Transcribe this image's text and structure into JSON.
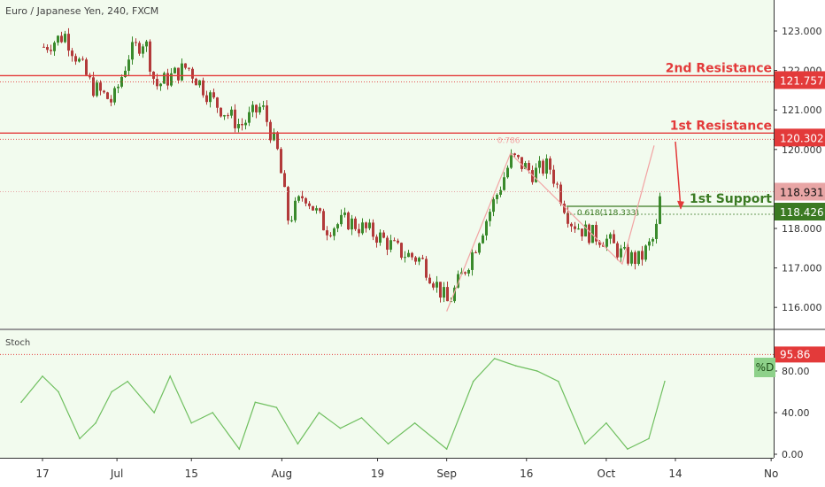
{
  "title": "Euro / Japanese Yen, 240, FXCM",
  "colors": {
    "background": "#f2fbee",
    "candle_up": "#3a8a2c",
    "candle_down": "#b23a3a",
    "resistance": "#e33a3a",
    "support": "#3b7a23",
    "stoch": "#6fbf5f",
    "projection": "#f2a3a3"
  },
  "indicator": {
    "name": "Stoch"
  },
  "chart_data": [
    {
      "type": "candlestick",
      "title": "Euro / Japanese Yen, 240, FXCM",
      "ylim": [
        115.7,
        123.4
      ],
      "y_ticks": [
        "116.000",
        "117.000",
        "118.000",
        "119.000",
        "120.000",
        "121.000",
        "122.000",
        "123.000"
      ],
      "x_ticks": [
        "17",
        "Jul",
        "15",
        "Aug",
        "19",
        "Sep",
        "16",
        "Oct",
        "14",
        "No"
      ],
      "approx_close_path": [
        {
          "x": "17 Jun",
          "y": 122.6
        },
        {
          "x": "21 Jun",
          "y": 122.9
        },
        {
          "x": "26 Jun",
          "y": 121.6
        },
        {
          "x": "30 Jun",
          "y": 121.2
        },
        {
          "x": "3 Jul",
          "y": 122.4
        },
        {
          "x": "6 Jul",
          "y": 122.8
        },
        {
          "x": "8 Jul",
          "y": 121.6
        },
        {
          "x": "14 Jul",
          "y": 122.1
        },
        {
          "x": "19 Jul",
          "y": 121.2
        },
        {
          "x": "24 Jul",
          "y": 120.6
        },
        {
          "x": "28 Jul",
          "y": 121.1
        },
        {
          "x": "31 Jul",
          "y": 119.9
        },
        {
          "x": "2 Aug",
          "y": 118.2
        },
        {
          "x": "5 Aug",
          "y": 118.9
        },
        {
          "x": "9 Aug",
          "y": 118.0
        },
        {
          "x": "13 Aug",
          "y": 118.2
        },
        {
          "x": "19 Aug",
          "y": 117.8
        },
        {
          "x": "23 Aug",
          "y": 117.4
        },
        {
          "x": "27 Aug",
          "y": 117.2
        },
        {
          "x": "1 Sep",
          "y": 116.1
        },
        {
          "x": "5 Sep",
          "y": 117.2
        },
        {
          "x": "10 Sep",
          "y": 118.8
        },
        {
          "x": "13 Sep",
          "y": 119.8
        },
        {
          "x": "17 Sep",
          "y": 119.4
        },
        {
          "x": "20 Sep",
          "y": 119.6
        },
        {
          "x": "24 Sep",
          "y": 118.2
        },
        {
          "x": "27 Sep",
          "y": 117.9
        },
        {
          "x": "1 Oct",
          "y": 117.7
        },
        {
          "x": "4 Oct",
          "y": 117.3
        },
        {
          "x": "7 Oct",
          "y": 117.2
        },
        {
          "x": "10 Oct",
          "y": 117.8
        },
        {
          "x": "11 Oct",
          "y": 118.9
        }
      ],
      "levels": [
        {
          "label": "2nd Resistance",
          "value": 121.757,
          "value_text": "121.757",
          "kind": "resistance"
        },
        {
          "label": "1st Resistance",
          "value": 120.302,
          "value_text": "120.302",
          "kind": "resistance"
        },
        {
          "label": "1st Support",
          "value": 118.426,
          "value_text": "118.426",
          "kind": "support"
        }
      ],
      "current_price": {
        "value": 118.931,
        "value_text": "118.931"
      },
      "fib_labels": [
        {
          "text": "0.786",
          "x": "13 Sep",
          "y": 120.3
        },
        {
          "text": "0.618(118.333)",
          "x": "28 Sep",
          "y": 118.333
        }
      ],
      "projection_path": [
        {
          "x": "1 Sep",
          "y": 115.9
        },
        {
          "x": "13 Sep",
          "y": 119.9
        },
        {
          "x": "4 Oct",
          "y": 117.1
        },
        {
          "x": "10 Oct",
          "y": 120.1
        }
      ],
      "arrow": {
        "from": {
          "x": "14 Oct",
          "y": 120.2
        },
        "to": {
          "x": "15 Oct",
          "y": 118.5
        }
      }
    },
    {
      "type": "line",
      "title": "Stoch",
      "ylim": [
        0,
        100
      ],
      "y_ticks": [
        "0.00",
        "40.00",
        "80.00"
      ],
      "series": [
        {
          "name": "%D",
          "values": [
            {
              "x": "13 Jun",
              "y": 50
            },
            {
              "x": "17 Jun",
              "y": 75
            },
            {
              "x": "20 Jun",
              "y": 60
            },
            {
              "x": "24 Jun",
              "y": 15
            },
            {
              "x": "27 Jun",
              "y": 30
            },
            {
              "x": "30 Jun",
              "y": 60
            },
            {
              "x": "3 Jul",
              "y": 70
            },
            {
              "x": "8 Jul",
              "y": 40
            },
            {
              "x": "11 Jul",
              "y": 75
            },
            {
              "x": "15 Jul",
              "y": 30
            },
            {
              "x": "19 Jul",
              "y": 40
            },
            {
              "x": "24 Jul",
              "y": 5
            },
            {
              "x": "27 Jul",
              "y": 50
            },
            {
              "x": "31 Jul",
              "y": 45
            },
            {
              "x": "4 Aug",
              "y": 10
            },
            {
              "x": "8 Aug",
              "y": 40
            },
            {
              "x": "12 Aug",
              "y": 25
            },
            {
              "x": "16 Aug",
              "y": 35
            },
            {
              "x": "21 Aug",
              "y": 10
            },
            {
              "x": "26 Aug",
              "y": 30
            },
            {
              "x": "1 Sep",
              "y": 5
            },
            {
              "x": "6 Sep",
              "y": 70
            },
            {
              "x": "10 Sep",
              "y": 92
            },
            {
              "x": "14 Sep",
              "y": 85
            },
            {
              "x": "18 Sep",
              "y": 80
            },
            {
              "x": "22 Sep",
              "y": 70
            },
            {
              "x": "27 Sep",
              "y": 10
            },
            {
              "x": "1 Oct",
              "y": 30
            },
            {
              "x": "5 Oct",
              "y": 5
            },
            {
              "x": "9 Oct",
              "y": 15
            },
            {
              "x": "12 Oct",
              "y": 70
            }
          ]
        }
      ],
      "reference_level": {
        "value": 95.86,
        "value_text": "95.86"
      }
    }
  ]
}
